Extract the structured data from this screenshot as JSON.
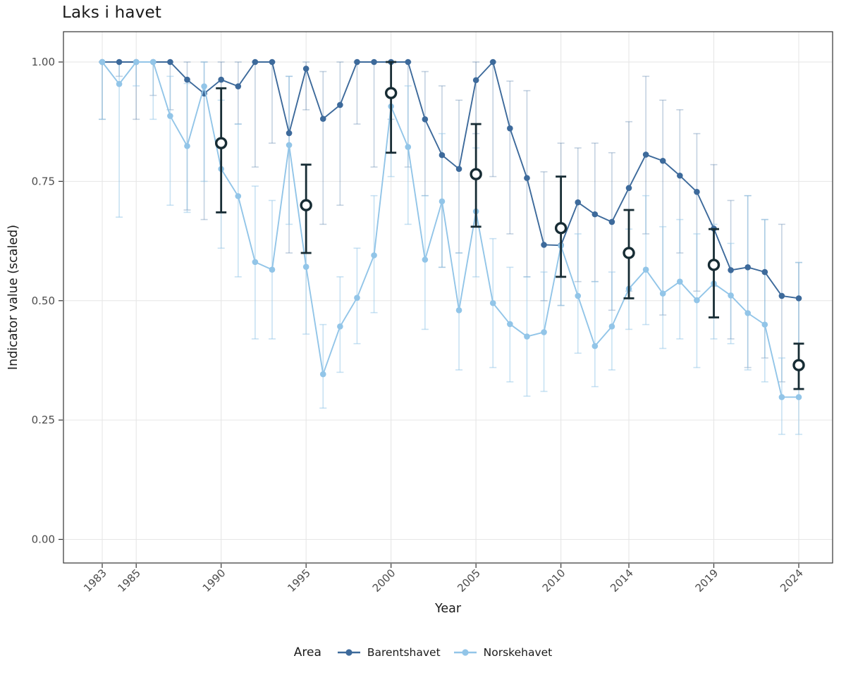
{
  "title": "Laks i havet",
  "axes": {
    "x_label": "Year",
    "y_label": "Indicator value (scaled)",
    "x_ticks": [
      1983,
      1985,
      1990,
      1995,
      2000,
      2005,
      2010,
      2014,
      2019,
      2024
    ],
    "y_ticks": [
      "0.00",
      "0.25",
      "0.50",
      "0.75",
      "1.00"
    ],
    "y_tick_values": [
      0,
      0.25,
      0.5,
      0.75,
      1.0
    ]
  },
  "legend": {
    "title": "Area",
    "items": [
      {
        "label": "Barentshavet",
        "color": "#3d6a9b"
      },
      {
        "label": "Norskehavet",
        "color": "#92c5e8"
      }
    ]
  },
  "colors": {
    "barentshavet": "#3d6a9b",
    "norskehavet": "#92c5e8",
    "assessment": "#172c34",
    "whisker_barentshavet": "rgba(61,106,155,0.30)",
    "whisker_norskehavet": "rgba(146,197,232,0.50)",
    "grid": "#e6e6e6",
    "panel_border": "#333333",
    "tick": "#333333",
    "tick_text": "#4d4d4d",
    "axis_text": "#1a1a1a"
  },
  "chart_data": {
    "type": "line",
    "title": "Laks i havet",
    "xlabel": "Year",
    "ylabel": "Indicator value (scaled)",
    "ylim": [
      0,
      1.05
    ],
    "grid": true,
    "legend_position": "bottom",
    "x": [
      1983,
      1984,
      1985,
      1986,
      1987,
      1988,
      1989,
      1990,
      1991,
      1992,
      1993,
      1994,
      1995,
      1996,
      1997,
      1998,
      1999,
      2000,
      2001,
      2002,
      2003,
      2004,
      2005,
      2006,
      2007,
      2008,
      2009,
      2010,
      2011,
      2012,
      2013,
      2014,
      2015,
      2016,
      2017,
      2018,
      2019,
      2020,
      2021,
      2022,
      2023,
      2024
    ],
    "series": [
      {
        "name": "Barentshavet",
        "values": [
          1,
          1,
          1,
          1,
          1,
          0.963,
          0.934,
          0.963,
          0.949,
          1,
          1,
          0.851,
          0.986,
          0.881,
          0.91,
          1,
          1,
          1,
          1,
          0.88,
          0.805,
          0.776,
          0.962,
          1,
          0.861,
          0.757,
          0.617,
          0.616,
          0.706,
          0.681,
          0.665,
          0.736,
          0.806,
          0.793,
          0.762,
          0.728,
          0.651,
          0.564,
          0.57,
          0.56,
          0.51,
          0.505
        ],
        "ci_low": [
          0.88,
          0.97,
          0.88,
          0.93,
          0.9,
          0.69,
          0.67,
          0.82,
          0.87,
          0.78,
          0.83,
          0.6,
          0.9,
          0.66,
          0.7,
          0.87,
          0.78,
          0.88,
          0.78,
          0.72,
          0.57,
          0.6,
          0.85,
          0.76,
          0.64,
          0.55,
          0.5,
          0.49,
          0.54,
          0.54,
          0.48,
          0.52,
          0.64,
          0.47,
          0.6,
          0.52,
          0.53,
          0.42,
          0.36,
          0.38,
          0.33,
          0.36
        ],
        "ci_high": [
          1,
          1,
          1,
          1,
          1,
          1,
          1,
          1,
          1,
          1,
          1,
          0.97,
          1,
          0.98,
          1,
          1,
          1,
          1,
          1,
          0.98,
          0.95,
          0.92,
          1,
          1,
          0.96,
          0.94,
          0.77,
          0.83,
          0.82,
          0.83,
          0.81,
          0.875,
          0.97,
          0.92,
          0.9,
          0.85,
          0.785,
          0.71,
          0.72,
          0.67,
          0.66,
          0.58
        ]
      },
      {
        "name": "Norskehavet",
        "values": [
          1,
          0.954,
          1,
          1,
          0.887,
          0.824,
          0.949,
          0.776,
          0.719,
          0.581,
          0.565,
          0.826,
          0.571,
          0.346,
          0.446,
          0.506,
          0.595,
          0.907,
          0.822,
          0.586,
          0.708,
          0.48,
          0.687,
          0.495,
          0.451,
          0.425,
          0.434,
          0.615,
          0.51,
          0.405,
          0.446,
          0.525,
          0.565,
          0.515,
          0.54,
          0.501,
          0.536,
          0.511,
          0.474,
          0.45,
          0.298,
          0.298
        ],
        "ci_low": [
          0.88,
          0.675,
          0.95,
          0.88,
          0.7,
          0.685,
          0.75,
          0.61,
          0.55,
          0.42,
          0.42,
          0.66,
          0.43,
          0.275,
          0.35,
          0.41,
          0.475,
          0.76,
          0.66,
          0.44,
          0.57,
          0.355,
          0.55,
          0.36,
          0.33,
          0.3,
          0.31,
          0.49,
          0.39,
          0.32,
          0.355,
          0.44,
          0.45,
          0.4,
          0.42,
          0.36,
          0.42,
          0.41,
          0.355,
          0.33,
          0.22,
          0.22
        ],
        "ci_high": [
          1,
          1,
          1,
          1,
          0.97,
          0.955,
          1,
          0.92,
          0.87,
          0.74,
          0.71,
          0.97,
          0.71,
          0.45,
          0.55,
          0.61,
          0.72,
          1,
          0.95,
          0.72,
          0.85,
          0.6,
          0.82,
          0.63,
          0.57,
          0.55,
          0.56,
          0.76,
          0.64,
          0.54,
          0.56,
          0.65,
          0.72,
          0.655,
          0.67,
          0.64,
          0.66,
          0.62,
          0.72,
          0.67,
          0.38,
          0.58
        ]
      }
    ],
    "assessment_points": {
      "description": "black open circles with error bars",
      "years": [
        1990,
        1995,
        2000,
        2005,
        2010,
        2014,
        2019,
        2024
      ],
      "values": [
        0.83,
        0.7,
        0.935,
        0.765,
        0.652,
        0.6,
        0.575,
        0.365
      ],
      "ci_low": [
        0.685,
        0.6,
        0.81,
        0.655,
        0.55,
        0.505,
        0.465,
        0.315
      ],
      "ci_high": [
        0.945,
        0.785,
        1.0,
        0.87,
        0.76,
        0.69,
        0.65,
        0.41
      ]
    }
  }
}
